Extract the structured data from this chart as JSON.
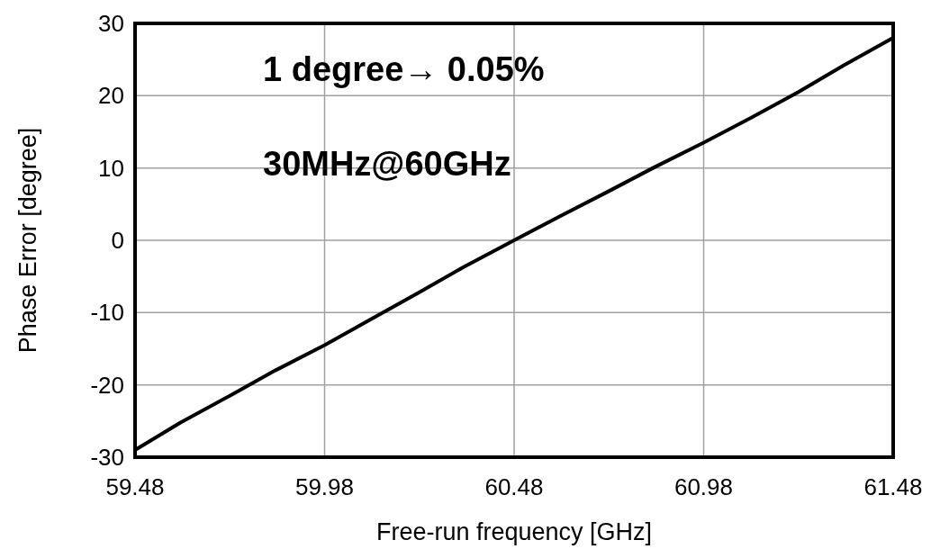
{
  "chart_data": {
    "type": "line",
    "xlabel": "Free-run frequency [GHz]",
    "ylabel": "Phase Error [degree]",
    "annotations": [
      "1 degree→ 0.05%",
      "30MHz@60GHz"
    ],
    "x": [
      59.48,
      59.6,
      59.73,
      59.85,
      59.98,
      60.1,
      60.23,
      60.35,
      60.48,
      60.6,
      60.73,
      60.85,
      60.98,
      61.1,
      61.23,
      61.35,
      61.48
    ],
    "series": [
      {
        "color": "#000000",
        "values": [
          -29,
          -25.2,
          -21.5,
          -18,
          -14.5,
          -11,
          -7.2,
          -3.6,
          0,
          3.3,
          6.8,
          10.1,
          13.5,
          16.8,
          20.5,
          24.2,
          28
        ]
      }
    ],
    "xlim": [
      59.48,
      61.48
    ],
    "xticks": [
      59.48,
      59.98,
      60.48,
      60.98,
      61.48
    ],
    "ylim": [
      -30,
      30
    ],
    "yticks": [
      -30,
      -20,
      -10,
      0,
      10,
      20,
      30
    ],
    "grid": true,
    "marker": "none",
    "line_style": "solid"
  }
}
